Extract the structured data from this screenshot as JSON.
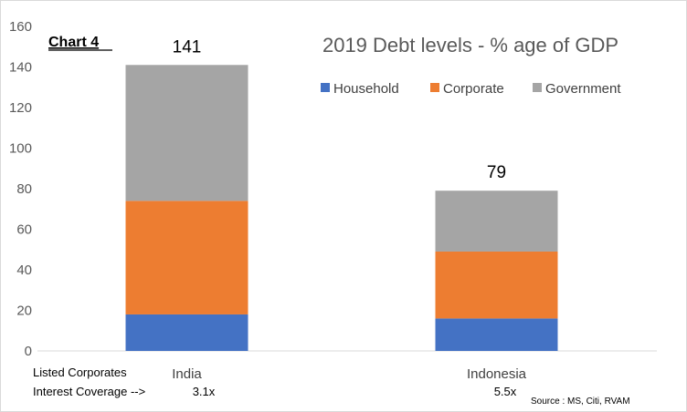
{
  "chart_label": "Chart 4",
  "notes": {
    "row1_label": "Listed Corporates",
    "row2_label": "Interest Coverage  -->",
    "coverage": [
      "3.1x",
      "5.5x"
    ],
    "source": "Source : MS, Citi, RVAM"
  },
  "colors": {
    "Household": "#4472c4",
    "Corporate": "#ed7d31",
    "Government": "#a5a5a5"
  },
  "chart_data": {
    "type": "bar",
    "stacked": true,
    "title": "2019 Debt levels - % age of GDP",
    "categories": [
      "India",
      "Indonesia"
    ],
    "series": [
      {
        "name": "Household",
        "values": [
          18,
          16
        ]
      },
      {
        "name": "Corporate",
        "values": [
          56,
          33
        ]
      },
      {
        "name": "Government",
        "values": [
          67,
          30
        ]
      }
    ],
    "totals": [
      "141",
      "79"
    ],
    "ylim": [
      0,
      160
    ],
    "yticks": [
      "0",
      "20",
      "40",
      "60",
      "80",
      "100",
      "120",
      "140",
      "160"
    ],
    "legend_position": "top-right",
    "grid": false
  }
}
